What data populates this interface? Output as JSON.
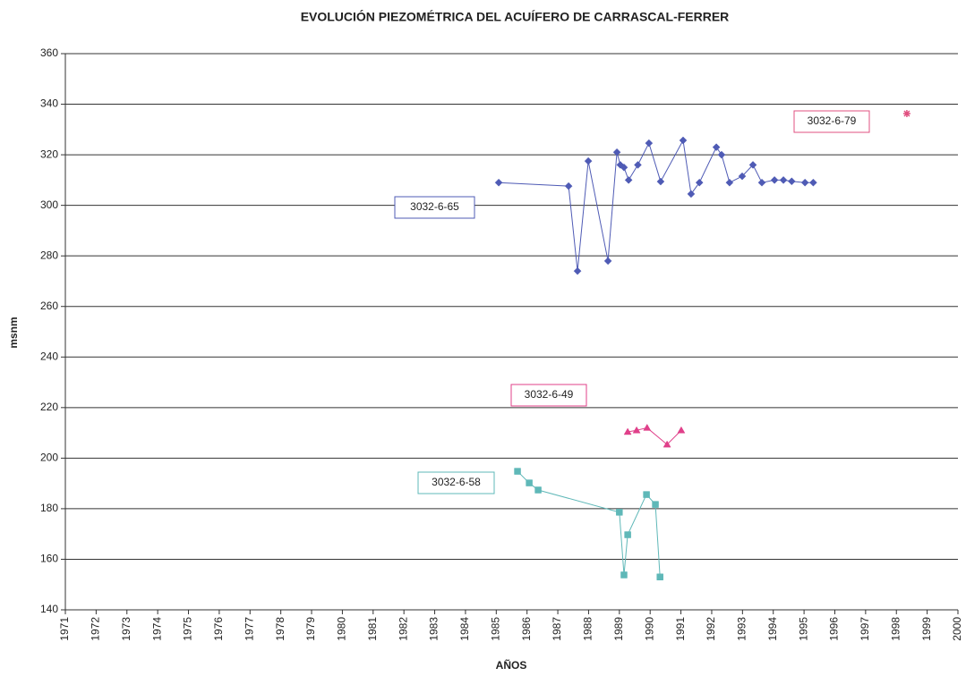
{
  "chart_data": {
    "type": "line",
    "title": "EVOLUCIÓN PIEZOMÉTRICA DEL ACUÍFERO DE CARRASCAL-FERRER",
    "x_label": "AÑOS",
    "y_label": "msnm",
    "xlim": [
      1971,
      2000
    ],
    "xticks": [
      1971,
      1972,
      1973,
      1974,
      1975,
      1976,
      1977,
      1978,
      1979,
      1980,
      1981,
      1982,
      1983,
      1984,
      1985,
      1986,
      1987,
      1988,
      1989,
      1990,
      1991,
      1992,
      1993,
      1994,
      1995,
      1996,
      1997,
      1998,
      1999,
      2000
    ],
    "ylim": [
      140,
      360
    ],
    "yticks": [
      140,
      160,
      180,
      200,
      220,
      240,
      260,
      280,
      300,
      320,
      340,
      360
    ],
    "grid": true,
    "series": [
      {
        "name": "3032-6-65",
        "color": "#4f5bb5",
        "x": [
          1985.08,
          1987.35,
          1987.64,
          1987.99,
          1988.63,
          1988.92,
          1989.03,
          1989.15,
          1989.3,
          1989.6,
          1989.96,
          1990.34,
          1991.07,
          1991.33,
          1991.6,
          1992.15,
          1992.32,
          1992.58,
          1992.99,
          1993.34,
          1993.63,
          1994.04,
          1994.33,
          1994.6,
          1995.03,
          1995.3
        ],
        "values": [
          309,
          307.6,
          274,
          317.5,
          278,
          321,
          316,
          315,
          310,
          316,
          324.6,
          309.4,
          325.7,
          304.5,
          309,
          323,
          320,
          309,
          311.5,
          316,
          309,
          310,
          310,
          309.5,
          309,
          309
        ]
      },
      {
        "name": "3032-6-49",
        "color": "#e0408a",
        "x": [
          1989.27,
          1989.56,
          1989.9,
          1990.55,
          1991.01
        ],
        "values": [
          210.4,
          211,
          212,
          205.4,
          211
        ]
      },
      {
        "name": "3032-6-58",
        "color": "#5fb8b8",
        "x": [
          1985.69,
          1986.07,
          1986.36,
          1989.0,
          1989.15,
          1989.27,
          1989.88,
          1990.17,
          1990.32
        ],
        "values": [
          194.8,
          190.2,
          187.4,
          178.6,
          153.8,
          169.7,
          185.6,
          181.7,
          153
        ]
      },
      {
        "name": "3032-6-79",
        "color": "#e05080",
        "x": [
          1998.34
        ],
        "values": [
          336.3
        ]
      }
    ]
  }
}
